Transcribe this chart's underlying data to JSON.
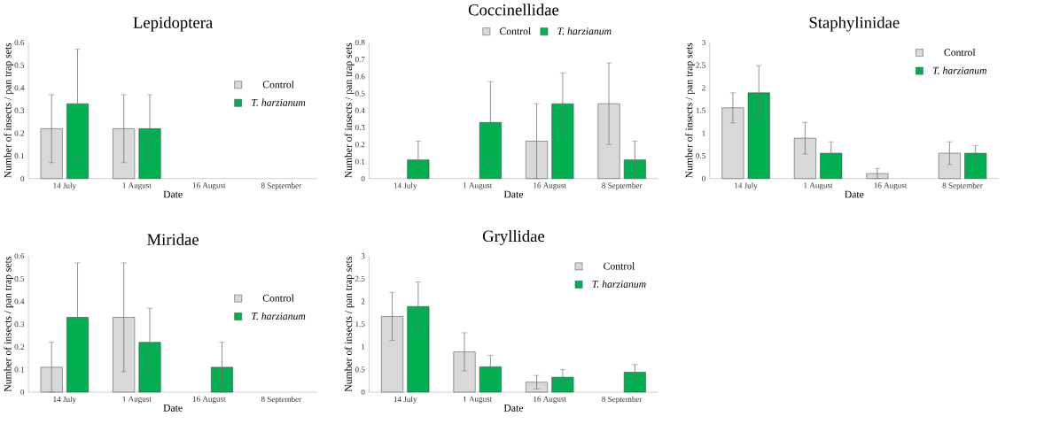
{
  "chart_data": [
    {
      "type": "bar",
      "title": "Lepidoptera",
      "xlabel": "Date",
      "ylabel": "Number of insects / pan trap sets",
      "categories": [
        "14 July",
        "1 August",
        "16 August",
        "8 September"
      ],
      "ylim": [
        0,
        0.6
      ],
      "yticks": [
        0,
        0.1,
        0.2,
        0.3,
        0.4,
        0.5,
        0.6
      ],
      "legend": "right",
      "series": [
        {
          "name": "Control",
          "color": "#d9d9d9",
          "values": [
            0.22,
            0.22,
            0,
            0
          ],
          "errors": [
            0.15,
            0.15,
            null,
            null
          ]
        },
        {
          "name": "*T. harzianum*",
          "color": "#00b050",
          "values": [
            0.33,
            0.22,
            0,
            0
          ],
          "errors": [
            0.24,
            0.15,
            null,
            null
          ]
        }
      ]
    },
    {
      "type": "bar",
      "title": "Coccinellidae",
      "xlabel": "Date",
      "ylabel": "Number of insects / pan trap sets",
      "categories": [
        "14 July",
        "1 August",
        "16 August",
        "8 September"
      ],
      "ylim": [
        0,
        0.8
      ],
      "yticks": [
        0,
        0.1,
        0.2,
        0.3,
        0.4,
        0.5,
        0.6,
        0.7,
        0.8
      ],
      "legend": "top",
      "series": [
        {
          "name": "Control",
          "color": "#d9d9d9",
          "values": [
            0,
            0,
            0.22,
            0.44
          ],
          "errors": [
            null,
            null,
            0.22,
            0.24
          ]
        },
        {
          "name": "*T. harzianum*",
          "color": "#00b050",
          "values": [
            0.11,
            0.33,
            0.44,
            0.11
          ],
          "errors": [
            0.11,
            0.24,
            0.18,
            0.11
          ]
        }
      ]
    },
    {
      "type": "bar",
      "title": "Staphylinidae",
      "xlabel": "Date",
      "ylabel": "Number of insects / pan trap sets",
      "categories": [
        "14 July",
        "1 August",
        "16 August",
        "8 September"
      ],
      "ylim": [
        0,
        3
      ],
      "yticks": [
        0,
        0.5,
        1,
        1.5,
        2,
        2.5,
        3
      ],
      "legend": "top right",
      "series": [
        {
          "name": "Control",
          "color": "#d9d9d9",
          "values": [
            1.56,
            0.89,
            0.11,
            0.56
          ],
          "errors": [
            0.33,
            0.35,
            0.11,
            0.25
          ]
        },
        {
          "name": "*T. harzianum*",
          "color": "#00b050",
          "values": [
            1.89,
            0.56,
            0,
            0.56
          ],
          "errors": [
            0.6,
            0.25,
            null,
            0.17
          ]
        }
      ]
    },
    {
      "type": "bar",
      "title": "Miridae",
      "xlabel": "Date",
      "ylabel": "Number of insects / pan trap sets",
      "categories": [
        "14 July",
        "1 August",
        "16 August",
        "8 September"
      ],
      "ylim": [
        0,
        0.6
      ],
      "yticks": [
        0,
        0.1,
        0.2,
        0.3,
        0.4,
        0.5,
        0.6
      ],
      "legend": "right",
      "series": [
        {
          "name": "Control",
          "color": "#d9d9d9",
          "values": [
            0.11,
            0.33,
            0,
            0
          ],
          "errors": [
            0.11,
            0.24,
            null,
            null
          ]
        },
        {
          "name": "*T. harzianum*",
          "color": "#00b050",
          "values": [
            0.33,
            0.22,
            0.11,
            0
          ],
          "errors": [
            0.24,
            0.15,
            0.11,
            null
          ]
        }
      ]
    },
    {
      "type": "bar",
      "title": "Gryllidae",
      "xlabel": "Date",
      "ylabel": "Number of insects / pan trap sets",
      "categories": [
        "14 July",
        "1 August",
        "16 August",
        "8 September"
      ],
      "ylim": [
        0,
        3
      ],
      "yticks": [
        0,
        0.5,
        1,
        1.5,
        2,
        2.5,
        3
      ],
      "legend": "top right",
      "series": [
        {
          "name": "Control",
          "color": "#d9d9d9",
          "values": [
            1.67,
            0.89,
            0.22,
            0
          ],
          "errors": [
            0.53,
            0.42,
            0.15,
            null
          ]
        },
        {
          "name": "*T. harzianum*",
          "color": "#00b050",
          "values": [
            1.89,
            0.56,
            0.33,
            0.44
          ],
          "errors": [
            0.54,
            0.25,
            0.17,
            0.17
          ]
        }
      ]
    }
  ]
}
